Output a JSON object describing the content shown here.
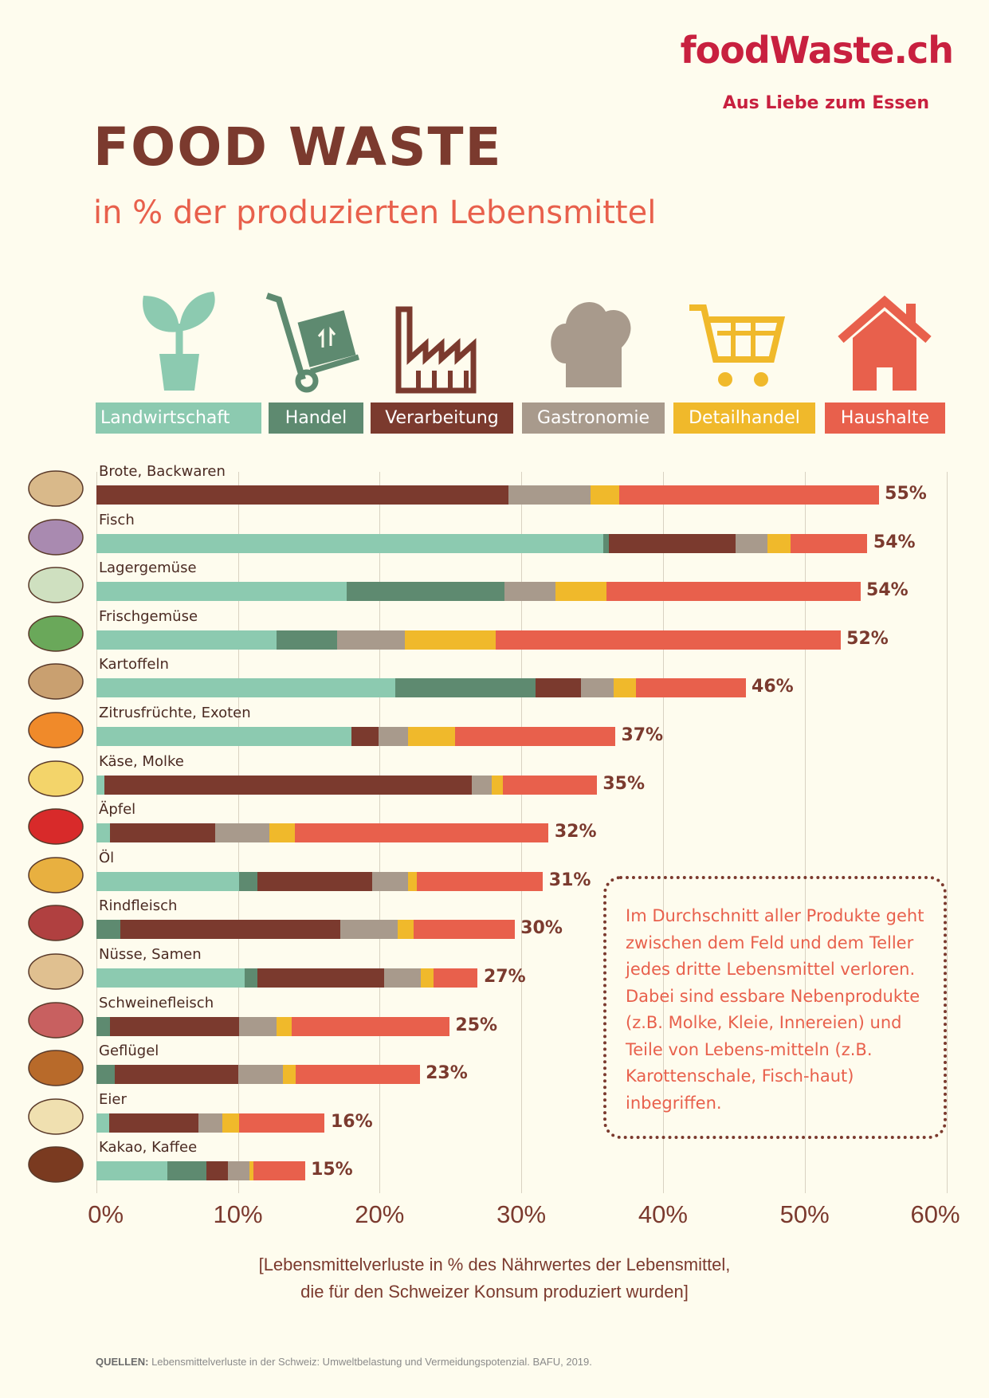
{
  "logo": {
    "text": "foodWaste.ch",
    "tagline": "Aus Liebe zum Essen"
  },
  "title": "FOOD WASTE",
  "subtitle": "in % der produzierten Lebensmittel",
  "colors": {
    "Landwirtschaft": "#8ccab0",
    "Handel": "#5e8a70",
    "Verarbeitung": "#7b3a2e",
    "Gastronomie": "#a89a8c",
    "Detailhandel": "#f0b92b",
    "Haushalte": "#e8604c"
  },
  "chart_data": {
    "type": "bar",
    "orientation": "horizontal-stacked",
    "series_names": [
      "Landwirtschaft",
      "Handel",
      "Verarbeitung",
      "Gastronomie",
      "Detailhandel",
      "Haushalte"
    ],
    "categories": [
      "Brote, Backwaren",
      "Fisch",
      "Lagergemüse",
      "Frischgemüse",
      "Kartoffeln",
      "Zitrusfrüchte, Exoten",
      "Käse, Molke",
      "Äpfel",
      "Öl",
      "Rindfleisch",
      "Nüsse, Samen",
      "Schweinefleisch",
      "Geflügel",
      "Eier",
      "Kakao, Kaffee"
    ],
    "values": [
      [
        0,
        0,
        29.1,
        5.8,
        2.0,
        18.3
      ],
      [
        35.8,
        0.4,
        8.9,
        2.3,
        1.6,
        5.4
      ],
      [
        17.7,
        11.1,
        0,
        3.6,
        3.6,
        17.9
      ],
      [
        12.7,
        4.3,
        0,
        4.8,
        6.4,
        24.3
      ],
      [
        21.1,
        9.9,
        3.2,
        2.3,
        1.6,
        7.7
      ],
      [
        18.0,
        0,
        1.9,
        2.1,
        3.3,
        11.3
      ],
      [
        0.6,
        0,
        25.9,
        1.4,
        0.8,
        6.6
      ],
      [
        1.0,
        0,
        7.4,
        3.8,
        1.8,
        17.9
      ],
      [
        10.1,
        1.3,
        8.1,
        2.5,
        0.6,
        8.9
      ],
      [
        0,
        1.7,
        15.5,
        4.1,
        1.1,
        7.1
      ],
      [
        10.5,
        0.9,
        8.9,
        2.6,
        0.9,
        3.1
      ],
      [
        0,
        1.0,
        9.1,
        2.6,
        1.1,
        11.1
      ],
      [
        0,
        1.3,
        8.7,
        3.2,
        0.9,
        8.7
      ],
      [
        0.9,
        0,
        6.3,
        1.7,
        1.2,
        6.0
      ],
      [
        5.0,
        2.8,
        1.5,
        1.5,
        0.3,
        3.6
      ]
    ],
    "totals": [
      "55%",
      "54%",
      "54%",
      "52%",
      "46%",
      "37%",
      "35%",
      "32%",
      "31%",
      "30%",
      "27%",
      "25%",
      "23%",
      "16%",
      "15%"
    ],
    "xlim": [
      0,
      60
    ],
    "xticks": [
      "0%",
      "10%",
      "20%",
      "30%",
      "40%",
      "50%",
      "60%"
    ],
    "xlabel": "[Lebensmittelverluste in % des Nährwertes der Lebensmittel, die für den Schweizer Konsum produziert wurden]",
    "grid": true,
    "legend": "top"
  },
  "caption": {
    "line1": "[Lebensmittelverluste in % des Nährwertes der Lebensmittel,",
    "line2": "die für den Schweizer Konsum produziert wurden]"
  },
  "note": "Im Durchschnitt aller Produkte geht zwischen dem Feld und dem Teller jedes dritte Lebensmittel verloren. Dabei sind essbare Nebenprodukte (z.B. Molke, Kleie, Innereien) und Teile von Lebens-mitteln (z.B. Karottenschale, Fisch-haut) inbegriffen.",
  "source": {
    "label": "QUELLEN:",
    "text": "Lebensmittelverluste in der Schweiz: Umweltbelastung und Vermeidungspotenzial. BAFU, 2019."
  }
}
